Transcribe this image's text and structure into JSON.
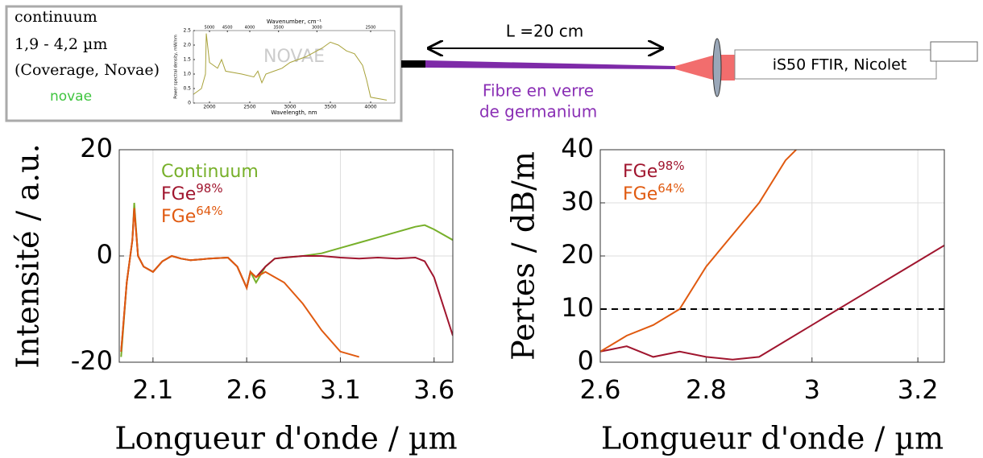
{
  "diagram": {
    "source_lines": [
      "continuum",
      "1,9 - 4,2 µm",
      "(Coverage, Novae)"
    ],
    "logo": "novae",
    "length": "L =20 cm",
    "fiber": [
      "Fibre en verre",
      "de germanium"
    ],
    "instrument": "iS50 FTIR, Nicolet"
  },
  "chart_data": [
    {
      "type": "line",
      "xlabel": "Wavelength, nm",
      "x2label": "Wavenumber, cm⁻¹",
      "ylabel": "Power spectral density, mW/nm",
      "watermark": "NOVAE",
      "xlim": [
        1800,
        4300
      ],
      "ylim": [
        0,
        2.5
      ],
      "xticks": [
        2000,
        2500,
        3000,
        3500,
        4000
      ],
      "x2ticks": [
        5000,
        4500,
        4000,
        3500,
        3000,
        2500
      ],
      "yticks": [
        0,
        0.5,
        {
          "value": 1,
          "label": "1.0"
        },
        1.5,
        {
          "value": 2,
          "label": "2.0"
        },
        2.5
      ],
      "grid": false,
      "series": [
        {
          "color": "#a8a23a",
          "x": [
            1800,
            1900,
            1950,
            1960,
            2000,
            2100,
            2150,
            2200,
            2400,
            2550,
            2600,
            2650,
            2700,
            2800,
            2900,
            3000,
            3200,
            3400,
            3500,
            3600,
            3700,
            3800,
            3900,
            3950,
            4000,
            4200
          ],
          "values": [
            0.3,
            0.5,
            1.0,
            2.4,
            1.4,
            1.2,
            1.5,
            1.1,
            1.0,
            0.9,
            1.1,
            0.7,
            1.0,
            1.1,
            1.2,
            1.4,
            1.6,
            1.9,
            2.1,
            2.0,
            1.8,
            1.7,
            1.3,
            0.8,
            0.2,
            0.1
          ]
        }
      ]
    },
    {
      "type": "line",
      "xlabel": "Longueur d'onde / µm",
      "ylabel": "Intensité / a.u.",
      "xlim": [
        1.92,
        3.7
      ],
      "ylim": [
        -20,
        20
      ],
      "xticks": [
        2.1,
        2.6,
        3.1,
        3.6
      ],
      "yticks": [
        -20,
        0,
        20
      ],
      "grid": true,
      "series": [
        {
          "name": "Continuum",
          "color": "#77b02a",
          "x": [
            1.93,
            1.96,
            1.99,
            2.0,
            2.02,
            2.05,
            2.1,
            2.15,
            2.2,
            2.25,
            2.3,
            2.4,
            2.5,
            2.55,
            2.6,
            2.62,
            2.65,
            2.7,
            2.75,
            2.8,
            2.9,
            3.0,
            3.1,
            3.2,
            3.3,
            3.4,
            3.5,
            3.55,
            3.6,
            3.7
          ],
          "values": [
            -19,
            -5,
            3,
            10,
            0,
            -2,
            -3,
            -1,
            0,
            -0.5,
            -0.8,
            -0.5,
            -0.3,
            -2,
            -6,
            -3,
            -5,
            -2,
            -0.5,
            -0.3,
            0,
            0.5,
            1.5,
            2.5,
            3.5,
            4.5,
            5.5,
            5.8,
            5,
            3
          ]
        },
        {
          "name": "FGe",
          "sup": "98%",
          "color": "#a0152e",
          "x": [
            1.93,
            1.96,
            1.99,
            2.0,
            2.02,
            2.05,
            2.1,
            2.15,
            2.2,
            2.25,
            2.3,
            2.4,
            2.5,
            2.55,
            2.6,
            2.62,
            2.65,
            2.7,
            2.75,
            2.8,
            2.9,
            3.0,
            3.1,
            3.2,
            3.3,
            3.4,
            3.5,
            3.55,
            3.6,
            3.7
          ],
          "values": [
            -18,
            -5,
            3,
            9,
            0,
            -2,
            -3,
            -1,
            0,
            -0.5,
            -0.8,
            -0.5,
            -0.3,
            -2,
            -6,
            -3,
            -4,
            -2,
            -0.5,
            -0.3,
            0,
            0,
            -0.3,
            -0.5,
            -0.3,
            -0.5,
            -0.3,
            -1,
            -4,
            -15
          ]
        },
        {
          "name": "FGe",
          "sup": "64%",
          "color": "#e05a10",
          "x": [
            1.93,
            1.96,
            1.99,
            2.0,
            2.02,
            2.05,
            2.1,
            2.15,
            2.2,
            2.25,
            2.3,
            2.4,
            2.5,
            2.55,
            2.6,
            2.62,
            2.65,
            2.7,
            2.75,
            2.8,
            2.9,
            3.0,
            3.1,
            3.2,
            3.3,
            3.4,
            3.5,
            3.55,
            3.6,
            3.7
          ],
          "values": [
            -18,
            -5,
            3,
            9,
            0,
            -2,
            -3,
            -1,
            0,
            -0.5,
            -0.8,
            -0.5,
            -0.3,
            -2,
            -6,
            -3,
            -4,
            -3,
            -4,
            -5,
            -9,
            -14,
            -18,
            -19,
            null,
            null,
            null,
            null,
            null,
            null
          ]
        }
      ]
    },
    {
      "type": "line",
      "xlabel": "Longueur d'onde / µm",
      "ylabel": "Pertes / dB/m",
      "xlim": [
        2.6,
        3.25
      ],
      "ylim": [
        0,
        40
      ],
      "xticks": [
        2.6,
        2.8,
        3,
        3.2
      ],
      "yticks": [
        0,
        10,
        20,
        30,
        40
      ],
      "grid": true,
      "hline": 10,
      "series": [
        {
          "name": "FGe",
          "sup": "98%",
          "color": "#a0152e",
          "x": [
            2.6,
            2.65,
            2.7,
            2.75,
            2.8,
            2.85,
            2.9,
            2.95,
            3.0,
            3.05,
            3.1,
            3.15,
            3.2,
            3.25
          ],
          "values": [
            2,
            3,
            1,
            2,
            1,
            0.5,
            1,
            4,
            7,
            10,
            13,
            16,
            19,
            22
          ]
        },
        {
          "name": "FGe",
          "sup": "64%",
          "color": "#e05a10",
          "x": [
            2.6,
            2.65,
            2.7,
            2.75,
            2.8,
            2.85,
            2.9,
            2.95,
            2.97
          ],
          "values": [
            2,
            5,
            7,
            10,
            18,
            24,
            30,
            38,
            40
          ]
        }
      ]
    }
  ]
}
